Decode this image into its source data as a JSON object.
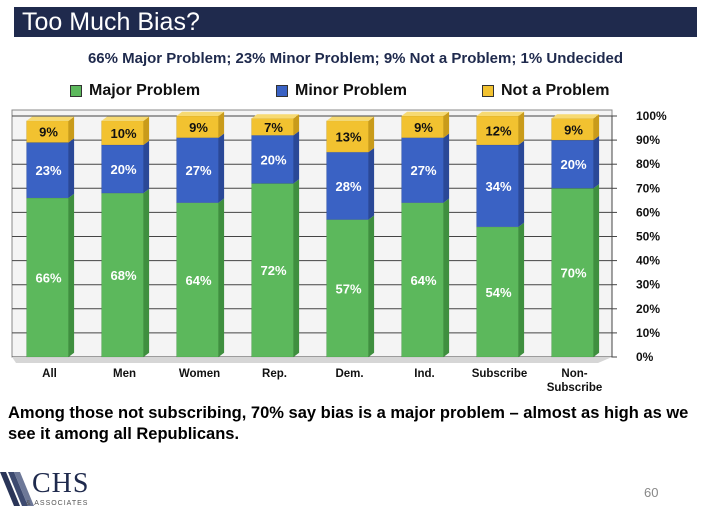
{
  "title": "Too Much Bias?",
  "subtitle": "66% Major Problem; 23% Minor Problem; 9% Not a Problem; 1% Undecided",
  "caption": "Among those not subscribing, 70% say bias is a major problem – almost as high as we see it among all Republicans.",
  "logo": {
    "text": "CHS",
    "subtext": "& ASSOCIATES"
  },
  "page_number": "60",
  "colors": {
    "major": "#5cb85c",
    "minor": "#3a62c4",
    "not": "#f2c230",
    "title_bg": "#1f2a4d"
  },
  "chart_data": {
    "type": "bar",
    "stacked": true,
    "categories": [
      "All",
      "Men",
      "Women",
      "Rep.",
      "Dem.",
      "Ind.",
      "Subscribe",
      "Non-Subscribe"
    ],
    "category_lines": [
      [
        "All"
      ],
      [
        "Men"
      ],
      [
        "Women"
      ],
      [
        "Rep."
      ],
      [
        "Dem."
      ],
      [
        "Ind."
      ],
      [
        "Subscribe"
      ],
      [
        "Non-",
        "Subscribe"
      ]
    ],
    "series": [
      {
        "name": "Major Problem",
        "values": [
          66,
          68,
          64,
          72,
          57,
          64,
          54,
          70
        ]
      },
      {
        "name": "Minor Problem",
        "values": [
          23,
          20,
          27,
          20,
          28,
          27,
          34,
          20
        ]
      },
      {
        "name": "Not a Problem",
        "values": [
          9,
          10,
          9,
          7,
          13,
          9,
          12,
          9
        ]
      }
    ],
    "y_ticks": [
      "0%",
      "10%",
      "20%",
      "30%",
      "40%",
      "50%",
      "60%",
      "70%",
      "80%",
      "90%",
      "100%"
    ],
    "ylim": [
      0,
      100
    ],
    "legend_position": "top"
  }
}
